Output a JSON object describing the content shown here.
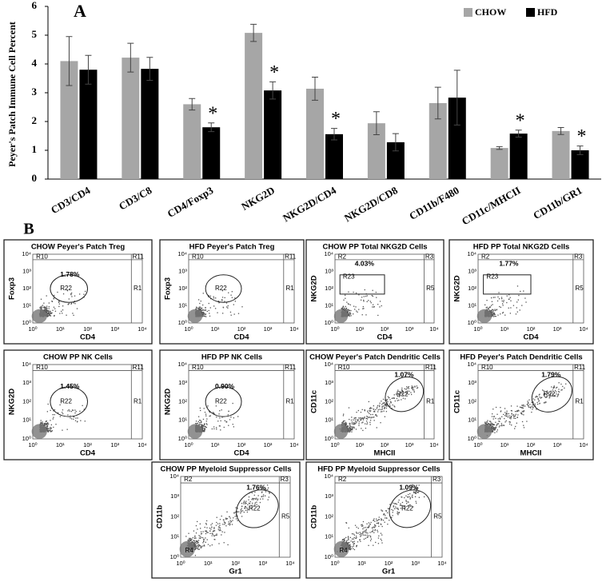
{
  "chart_data": {
    "type": "bar",
    "title": "A",
    "y_label": "Peyer's Patch  Immune Cell Percent",
    "categories": [
      "CD3/CD4",
      "CD3/C8",
      "CD4/Foxp3",
      "NKG2D",
      "NKG2D/CD4",
      "NKG2D/CD8",
      "CD11b/F480",
      "CD11c/MHCII",
      "CD11b/GR1"
    ],
    "series": [
      {
        "name": "CHOW",
        "color": "#a6a6a6",
        "values": [
          4.1,
          4.22,
          2.6,
          5.08,
          3.14,
          1.94,
          2.64,
          1.08,
          1.67
        ],
        "errors": [
          0.85,
          0.5,
          0.2,
          0.3,
          0.4,
          0.4,
          0.55,
          0.05,
          0.12
        ]
      },
      {
        "name": "HFD",
        "color": "#000000",
        "values": [
          3.8,
          3.83,
          1.8,
          3.08,
          1.56,
          1.28,
          2.83,
          1.58,
          1.0
        ],
        "errors": [
          0.5,
          0.4,
          0.15,
          0.3,
          0.2,
          0.3,
          0.95,
          0.12,
          0.15
        ],
        "markers": [
          null,
          null,
          "*",
          "*",
          "*",
          null,
          null,
          "*",
          "*"
        ]
      }
    ],
    "ylim": [
      0,
      6
    ],
    "yticks": [
      0,
      1,
      2,
      3,
      4,
      5,
      6
    ],
    "legend": "top-right"
  },
  "panel_b": {
    "label": "B",
    "axis_ticks": [
      "10⁰",
      "10¹",
      "10²",
      "10³",
      "10⁴"
    ],
    "plots": [
      {
        "title": "CHOW Peyer's Patch Treg",
        "percent": "1.78%",
        "gates": [
          "R10",
          "R11",
          "R1",
          "R22"
        ],
        "x_label": "CD4",
        "y_label": "Foxp3"
      },
      {
        "title": "HFD Peyer's Patch Treg",
        "percent": null,
        "gates": [
          "R10",
          "R11",
          "R1",
          "R22"
        ],
        "x_label": "CD4",
        "y_label": "Foxp3"
      },
      {
        "title": "CHOW PP Total NKG2D Cells",
        "percent": "4.03%",
        "gates": [
          "R2",
          "R3",
          "R5",
          "R23"
        ],
        "x_label": "CD4",
        "y_label": "NKG2D"
      },
      {
        "title": "HFD PP Total NKG2D Cells",
        "percent": "1.77%",
        "gates": [
          "R2",
          "R3",
          "R5",
          "R23"
        ],
        "x_label": "CD4",
        "y_label": "NKG2D"
      },
      {
        "title": "CHOW PP NK Cells",
        "percent": "1.45%",
        "gates": [
          "R10",
          "R11",
          "R1",
          "R22"
        ],
        "x_label": "CD4",
        "y_label": "NKG2D"
      },
      {
        "title": "HFD PP NK Cells",
        "percent": "0.90%",
        "gates": [
          "R10",
          "R11",
          "R1",
          "R22"
        ],
        "x_label": "CD4",
        "y_label": "NKG2D"
      },
      {
        "title": "CHOW Peyer's Patch Dendritic Cells",
        "percent": "1.07%",
        "gates": [
          "R10",
          "R11",
          "R1",
          "R22"
        ],
        "x_label": "MHCII",
        "y_label": "CD11c"
      },
      {
        "title": "HFD Peyer's Patch Dendritic Cells",
        "percent": "1.79%",
        "gates": [
          "R10",
          "R11",
          "R1",
          "R22"
        ],
        "x_label": "MHCII",
        "y_label": "CD11c"
      },
      {
        "title": "CHOW PP Myeloid Suppressor Cells",
        "percent": "1.76%",
        "gates": [
          "R2",
          "R3",
          "R5",
          "R22",
          "R4"
        ],
        "x_label": "Gr1",
        "y_label": "CD11b"
      },
      {
        "title": "HFD PP Myeloid Suppressor Cells",
        "percent": "1.09%",
        "gates": [
          "R2",
          "R3",
          "R5",
          "R22",
          "R4"
        ],
        "x_label": "Gr1",
        "y_label": "CD11b"
      }
    ]
  }
}
